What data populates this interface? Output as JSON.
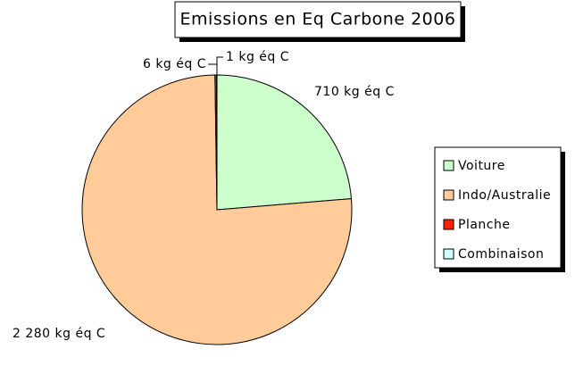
{
  "chart_data": {
    "type": "pie",
    "title": "Emissions en Eq Carbone 2006",
    "categories": [
      "Voiture",
      "Indo/Australie",
      "Planche",
      "Combinaison"
    ],
    "values": [
      710,
      2280,
      6,
      1
    ],
    "value_labels": [
      "710 kg éq C",
      "2 280 kg éq C",
      "6 kg éq C",
      "1 kg éq C"
    ],
    "colors": [
      "#ccffcc",
      "#ffcc99",
      "#ff2200",
      "#ccffff"
    ],
    "legend": "right"
  }
}
